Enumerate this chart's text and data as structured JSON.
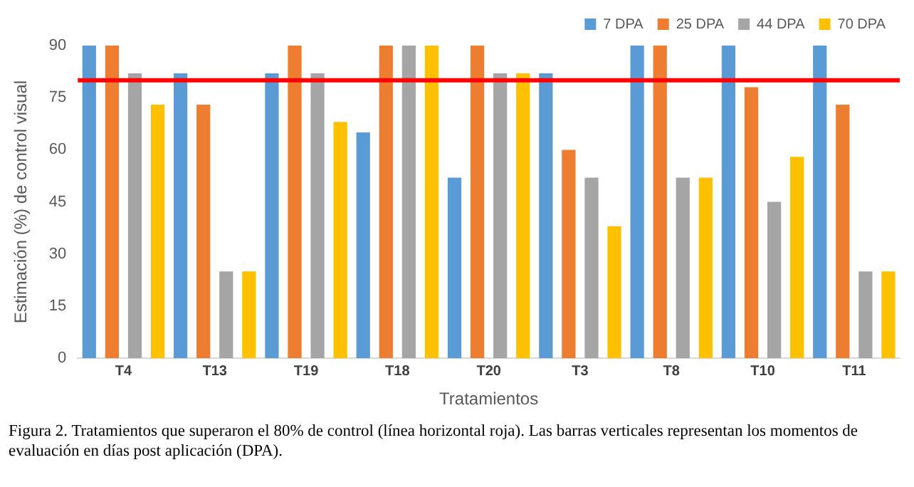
{
  "chart_data": {
    "type": "bar",
    "xlabel": "Tratamientos",
    "ylabel": "Estimación (%) de control visual",
    "categories": [
      "T4",
      "T13",
      "T19",
      "T18",
      "T20",
      "T3",
      "T8",
      "T10",
      "T11"
    ],
    "series": [
      {
        "name": "7 DPA",
        "color": "#5b9bd5",
        "values": [
          90,
          82,
          82,
          65,
          52,
          82,
          90,
          90,
          90
        ]
      },
      {
        "name": "25 DPA",
        "color": "#ed7d31",
        "values": [
          90,
          73,
          90,
          90,
          90,
          60,
          90,
          78,
          73
        ]
      },
      {
        "name": "44 DPA",
        "color": "#a5a5a5",
        "values": [
          82,
          25,
          82,
          90,
          82,
          52,
          52,
          45,
          25
        ]
      },
      {
        "name": "70 DPA",
        "color": "#ffc000",
        "values": [
          73,
          25,
          68,
          90,
          82,
          38,
          52,
          58,
          25
        ]
      }
    ],
    "ylim": [
      0,
      90
    ],
    "yticks": [
      0,
      15,
      30,
      45,
      60,
      75,
      90
    ],
    "grid": false,
    "legend": "top right",
    "ref_lines": [
      {
        "axis": "y",
        "value": 80,
        "color": "#ff0000"
      }
    ],
    "annotations": [
      "Figura 2. Tratamientos que superaron el 80% de control (línea horizontal roja). Las barras verticales representan los momentos de evaluación en días post aplicación (DPA)."
    ]
  }
}
